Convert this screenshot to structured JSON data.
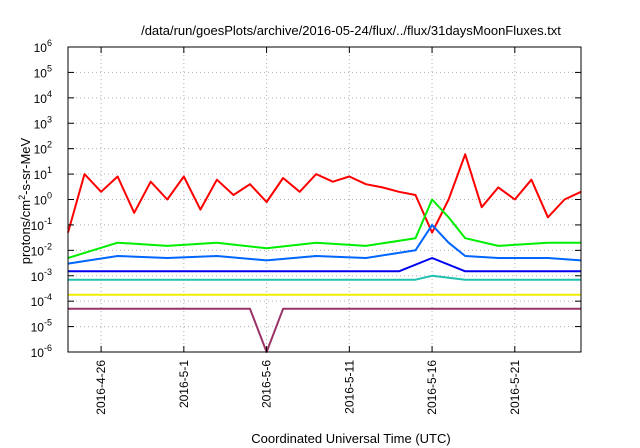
{
  "chart_data": {
    "type": "line",
    "title": "/data/run/goesPlots/archive/2016-05-24/flux/../flux/31daysMoonFluxes.txt",
    "xlabel": "Coordinated Universal Time (UTC)",
    "ylabel": {
      "prefix": "protons/cm",
      "sup": "2",
      "suffix": "-s-sr-MeV"
    },
    "yscale": "log",
    "ylim": [
      1e-06,
      1000000.0
    ],
    "y_ticks": [
      {
        "base": "10",
        "exp": "-6",
        "value": 1e-06
      },
      {
        "base": "10",
        "exp": "-5",
        "value": 1e-05
      },
      {
        "base": "10",
        "exp": "-4",
        "value": 0.0001
      },
      {
        "base": "10",
        "exp": "-3",
        "value": 0.001
      },
      {
        "base": "10",
        "exp": "-2",
        "value": 0.01
      },
      {
        "base": "10",
        "exp": "-1",
        "value": 0.1
      },
      {
        "base": "10",
        "exp": "0",
        "value": 1
      },
      {
        "base": "10",
        "exp": "1",
        "value": 10
      },
      {
        "base": "10",
        "exp": "2",
        "value": 100
      },
      {
        "base": "10",
        "exp": "3",
        "value": 1000
      },
      {
        "base": "10",
        "exp": "4",
        "value": 10000
      },
      {
        "base": "10",
        "exp": "5",
        "value": 100000
      },
      {
        "base": "10",
        "exp": "6",
        "value": 1000000
      }
    ],
    "xlim": [
      "2016-04-24",
      "2016-05-25"
    ],
    "x_ticks": [
      "2016-4-26",
      "2016-5-1",
      "2016-5-6",
      "2016-5-11",
      "2016-5-16",
      "2016-5-21"
    ],
    "x_tick_values": [
      "2016-04-26",
      "2016-05-01",
      "2016-05-06",
      "2016-05-11",
      "2016-05-16",
      "2016-05-21"
    ],
    "grid": true,
    "legend": "none",
    "series": [
      {
        "color": "#ff0000",
        "x": [
          "2016-04-24",
          "2016-04-25",
          "2016-04-26",
          "2016-04-27",
          "2016-04-28",
          "2016-04-29",
          "2016-04-30",
          "2016-05-01",
          "2016-05-02",
          "2016-05-03",
          "2016-05-04",
          "2016-05-05",
          "2016-05-06",
          "2016-05-07",
          "2016-05-08",
          "2016-05-09",
          "2016-05-10",
          "2016-05-11",
          "2016-05-12",
          "2016-05-13",
          "2016-05-14",
          "2016-05-15",
          "2016-05-16",
          "2016-05-17",
          "2016-05-18",
          "2016-05-19",
          "2016-05-20",
          "2016-05-21",
          "2016-05-22",
          "2016-05-23",
          "2016-05-24",
          "2016-05-25"
        ],
        "values": [
          0.05,
          10,
          2,
          8,
          0.3,
          5,
          1,
          8,
          0.4,
          6,
          1.5,
          4,
          0.8,
          7,
          2,
          10,
          5,
          8,
          4,
          3,
          2,
          1.5,
          0.05,
          1,
          60,
          0.5,
          3,
          1,
          6,
          0.2,
          1,
          2
        ]
      },
      {
        "color": "#00ee00",
        "x": [
          "2016-04-24",
          "2016-04-27",
          "2016-04-30",
          "2016-05-03",
          "2016-05-06",
          "2016-05-09",
          "2016-05-12",
          "2016-05-15",
          "2016-05-16",
          "2016-05-17",
          "2016-05-18",
          "2016-05-20",
          "2016-05-23",
          "2016-05-25"
        ],
        "values": [
          0.005,
          0.02,
          0.015,
          0.02,
          0.012,
          0.02,
          0.015,
          0.03,
          1,
          0.2,
          0.03,
          0.015,
          0.02,
          0.02
        ]
      },
      {
        "color": "#0066ff",
        "x": [
          "2016-04-24",
          "2016-04-27",
          "2016-04-30",
          "2016-05-03",
          "2016-05-06",
          "2016-05-09",
          "2016-05-12",
          "2016-05-15",
          "2016-05-16",
          "2016-05-17",
          "2016-05-18",
          "2016-05-20",
          "2016-05-23",
          "2016-05-25"
        ],
        "values": [
          0.003,
          0.006,
          0.005,
          0.006,
          0.004,
          0.006,
          0.005,
          0.01,
          0.1,
          0.02,
          0.006,
          0.005,
          0.005,
          0.004
        ]
      },
      {
        "color": "#0000ee",
        "x": [
          "2016-04-24",
          "2016-04-28",
          "2016-05-02",
          "2016-05-06",
          "2016-05-10",
          "2016-05-14",
          "2016-05-16",
          "2016-05-18",
          "2016-05-22",
          "2016-05-25"
        ],
        "values": [
          0.0015,
          0.0015,
          0.0015,
          0.0015,
          0.0015,
          0.0015,
          0.005,
          0.0015,
          0.0015,
          0.0015
        ]
      },
      {
        "color": "#20c0b0",
        "x": [
          "2016-04-24",
          "2016-05-01",
          "2016-05-08",
          "2016-05-15",
          "2016-05-16",
          "2016-05-18",
          "2016-05-25"
        ],
        "values": [
          0.0007,
          0.0007,
          0.0007,
          0.0007,
          0.001,
          0.0007,
          0.0007
        ]
      },
      {
        "color": "#eeee00",
        "x": [
          "2016-04-24",
          "2016-05-01",
          "2016-05-08",
          "2016-05-15",
          "2016-05-22",
          "2016-05-25"
        ],
        "values": [
          0.00018,
          0.00018,
          0.00018,
          0.00018,
          0.00018,
          0.00018
        ]
      },
      {
        "color": "#993366",
        "x": [
          "2016-04-24",
          "2016-04-30",
          "2016-05-05",
          "2016-05-06",
          "2016-05-07",
          "2016-05-12",
          "2016-05-18",
          "2016-05-25"
        ],
        "values": [
          5e-05,
          5e-05,
          5e-05,
          1e-06,
          5e-05,
          5e-05,
          5e-05,
          5e-05
        ]
      }
    ]
  }
}
